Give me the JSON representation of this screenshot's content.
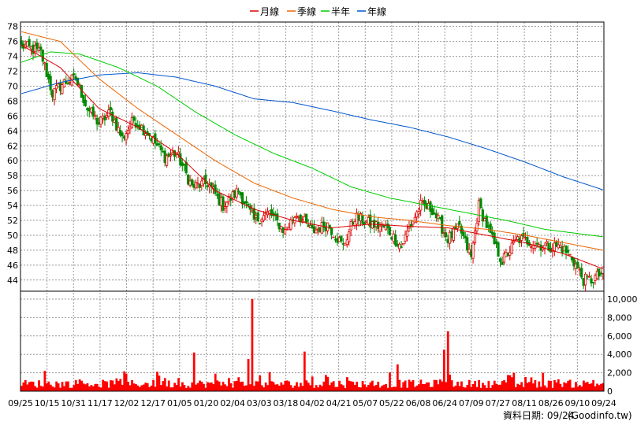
{
  "chart_data": {
    "type": "candlestick",
    "legend": {
      "placement": "top-center",
      "items": [
        {
          "label": "月線",
          "color": "#dd0000"
        },
        {
          "label": "季線",
          "color": "#ee6600"
        },
        {
          "label": "半年",
          "color": "#00cc00"
        },
        {
          "label": "年線",
          "color": "#0055cc"
        }
      ]
    },
    "price_axis": {
      "position": "left",
      "ylim": [
        42.5,
        78.6
      ],
      "ticks": [
        44,
        46,
        48,
        50,
        52,
        54,
        56,
        58,
        60,
        62,
        64,
        66,
        68,
        70,
        72,
        74,
        76,
        78
      ]
    },
    "volume_axis": {
      "position": "right",
      "ylim": [
        0,
        10000
      ],
      "ticks": [
        0,
        2000,
        4000,
        6000,
        8000,
        10000
      ],
      "tick_labels": [
        "0",
        "2,000",
        "4,000",
        "6,000",
        "8,000",
        "10,000"
      ]
    },
    "x_labels": [
      "09/25",
      "10/15",
      "10/31",
      "11/17",
      "12/02",
      "12/17",
      "01/05",
      "01/20",
      "02/04",
      "03/03",
      "03/18",
      "04/02",
      "04/21",
      "05/07",
      "05/22",
      "06/08",
      "06/24",
      "07/09",
      "07/27",
      "08/11",
      "08/26",
      "09/10",
      "09/24"
    ],
    "grid": true,
    "up_color": "#dd0000",
    "down_color": "#008800",
    "volume_color": "#ff0000",
    "anchors": {
      "close": [
        [
          0,
          75.5
        ],
        [
          10,
          74.5
        ],
        [
          16,
          69
        ],
        [
          22,
          70.5
        ],
        [
          28,
          71
        ],
        [
          34,
          67
        ],
        [
          40,
          65
        ],
        [
          46,
          66.5
        ],
        [
          52,
          63
        ],
        [
          58,
          65.5
        ],
        [
          66,
          63.5
        ],
        [
          74,
          60.5
        ],
        [
          80,
          61
        ],
        [
          88,
          56.5
        ],
        [
          96,
          57
        ],
        [
          104,
          54
        ],
        [
          112,
          56
        ],
        [
          120,
          52
        ],
        [
          128,
          53
        ],
        [
          136,
          50.5
        ],
        [
          142,
          53
        ],
        [
          150,
          50.5
        ],
        [
          158,
          51.5
        ],
        [
          166,
          48.5
        ],
        [
          172,
          52.5
        ],
        [
          180,
          51.5
        ],
        [
          188,
          51
        ],
        [
          196,
          48.5
        ],
        [
          200,
          51
        ],
        [
          206,
          54
        ],
        [
          212,
          53.5
        ],
        [
          220,
          49.5
        ],
        [
          226,
          51
        ],
        [
          232,
          47
        ],
        [
          236,
          54
        ],
        [
          242,
          50
        ],
        [
          248,
          46.5
        ],
        [
          256,
          49.5
        ],
        [
          262,
          49.2
        ],
        [
          270,
          48.5
        ],
        [
          278,
          48.5
        ],
        [
          284,
          47
        ],
        [
          290,
          44
        ],
        [
          294,
          44
        ],
        [
          300,
          45
        ]
      ],
      "ma_month": [
        [
          0,
          75.5
        ],
        [
          20,
          72.5
        ],
        [
          40,
          67
        ],
        [
          60,
          64.5
        ],
        [
          80,
          61
        ],
        [
          100,
          56
        ],
        [
          120,
          53.5
        ],
        [
          140,
          52
        ],
        [
          160,
          51
        ],
        [
          180,
          51.5
        ],
        [
          200,
          51.2
        ],
        [
          220,
          51
        ],
        [
          240,
          50
        ],
        [
          260,
          49
        ],
        [
          280,
          47.5
        ],
        [
          300,
          45.5
        ]
      ],
      "ma_quarter": [
        [
          0,
          77.3
        ],
        [
          20,
          76
        ],
        [
          40,
          71
        ],
        [
          60,
          67
        ],
        [
          80,
          63.5
        ],
        [
          100,
          60
        ],
        [
          120,
          57
        ],
        [
          140,
          55
        ],
        [
          160,
          53.5
        ],
        [
          180,
          52.5
        ],
        [
          200,
          52
        ],
        [
          220,
          51.3
        ],
        [
          240,
          50.8
        ],
        [
          260,
          50
        ],
        [
          280,
          49
        ],
        [
          300,
          48
        ]
      ],
      "ma_half": [
        [
          0,
          73.2
        ],
        [
          15,
          74.6
        ],
        [
          30,
          74.3
        ],
        [
          50,
          72.5
        ],
        [
          70,
          70
        ],
        [
          90,
          66.5
        ],
        [
          110,
          63.5
        ],
        [
          130,
          61
        ],
        [
          150,
          59
        ],
        [
          170,
          56.5
        ],
        [
          190,
          55
        ],
        [
          210,
          54
        ],
        [
          230,
          53
        ],
        [
          250,
          52
        ],
        [
          270,
          50.8
        ],
        [
          300,
          49.8
        ]
      ],
      "ma_year": [
        [
          0,
          69
        ],
        [
          20,
          70.5
        ],
        [
          40,
          71.5
        ],
        [
          60,
          71.8
        ],
        [
          80,
          71.2
        ],
        [
          100,
          70
        ],
        [
          120,
          68.3
        ],
        [
          140,
          67.8
        ],
        [
          160,
          66.7
        ],
        [
          180,
          65.5
        ],
        [
          200,
          64.5
        ],
        [
          220,
          63.2
        ],
        [
          240,
          61.6
        ],
        [
          260,
          59.8
        ],
        [
          280,
          57.8
        ],
        [
          300,
          56.1
        ]
      ],
      "volume_spikes": [
        [
          119,
          10000
        ],
        [
          117,
          3500
        ],
        [
          89,
          4200
        ],
        [
          146,
          4300
        ],
        [
          218,
          4500
        ],
        [
          220,
          6500
        ],
        [
          194,
          2900
        ],
        [
          269,
          2000
        ],
        [
          12,
          2200
        ],
        [
          70,
          2100
        ],
        [
          100,
          1900
        ],
        [
          295,
          1200
        ]
      ]
    },
    "footer_label": "資料日期: 09/24",
    "watermark": "(Goodinfo.tw)"
  }
}
